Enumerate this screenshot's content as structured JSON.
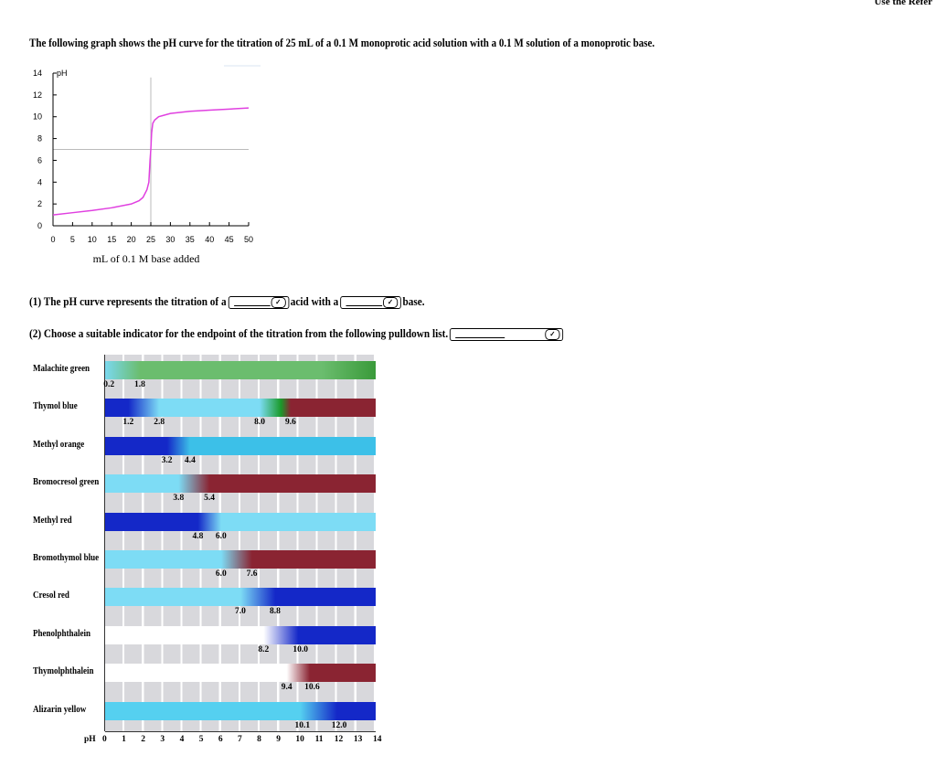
{
  "header": {
    "corner_text": "Use the Refer",
    "intro": "The following graph shows the pH curve for the titration of 25 mL of a 0.1 M monoprotic acid solution with a 0.1 M solution of a monoprotic base."
  },
  "chart_data": {
    "type": "line",
    "ylabel": "pH",
    "xlabel": "mL of 0.1 M base added",
    "xlim": [
      0,
      50
    ],
    "ylim": [
      0,
      14
    ],
    "xticks": [
      "0",
      "5",
      "10",
      "15",
      "20",
      "25",
      "30",
      "35",
      "40",
      "45",
      "50"
    ],
    "yticks": [
      "0",
      "2",
      "4",
      "6",
      "8",
      "10",
      "12",
      "14"
    ],
    "reference_lines": {
      "x": 25,
      "y": 7
    },
    "color": "#e040e0",
    "x": [
      0,
      5,
      10,
      15,
      20,
      22,
      23,
      24,
      24.5,
      24.8,
      25,
      25.2,
      25.5,
      26,
      27,
      30,
      35,
      40,
      45,
      50
    ],
    "y": [
      1.0,
      1.2,
      1.4,
      1.65,
      2.0,
      2.3,
      2.6,
      3.3,
      4.0,
      6.0,
      7.0,
      8.5,
      9.4,
      9.7,
      10.0,
      10.3,
      10.5,
      10.6,
      10.7,
      10.8
    ]
  },
  "questions": {
    "q1_prefix": "(1) The pH curve represents the titration of a",
    "q1_mid": "acid with a",
    "q1_suffix": "base.",
    "q2": "(2) Choose a suitable indicator for the endpoint of the titration from the following pulldown list."
  },
  "indicator_chart": {
    "axis_label": "pH",
    "ticks": [
      "0",
      "1",
      "2",
      "3",
      "4",
      "5",
      "6",
      "7",
      "8",
      "9",
      "10",
      "11",
      "12",
      "13",
      "14"
    ],
    "indicators": [
      {
        "name": "Malachite green",
        "low": "0.2",
        "high": "1.8",
        "lo": 0.2,
        "hi": 1.8,
        "c1": "#7ad8ee",
        "c2": "#6bbd6e",
        "c3": "#3a9a3a"
      },
      {
        "name": "Thymol blue",
        "low": "1.2",
        "high": "2.8",
        "lo": 1.2,
        "hi": 2.8,
        "c1": "#1428c8",
        "c2": "#7ddcf5",
        "low2": "8.0",
        "high2": "9.6",
        "lo2": 8.0,
        "hi2": 9.6,
        "c3": "#8a2432"
      },
      {
        "name": "Methyl orange",
        "low": "3.2",
        "high": "4.4",
        "lo": 3.2,
        "hi": 4.4,
        "c1": "#1428c8",
        "c2": "#3cc0e8"
      },
      {
        "name": "Bromocresol green",
        "low": "3.8",
        "high": "5.4",
        "lo": 3.8,
        "hi": 5.4,
        "c1": "#7ddcf5",
        "c2": "#8a2432"
      },
      {
        "name": "Methyl red",
        "low": "4.8",
        "high": "6.0",
        "lo": 4.8,
        "hi": 6.0,
        "c1": "#1428c8",
        "c2": "#7ddcf5"
      },
      {
        "name": "Bromothymol blue",
        "low": "6.0",
        "high": "7.6",
        "lo": 6.0,
        "hi": 7.6,
        "c1": "#7ddcf5",
        "c2": "#8a2432"
      },
      {
        "name": "Cresol red",
        "low": "7.0",
        "high": "8.8",
        "lo": 7.0,
        "hi": 8.8,
        "c1": "#7ddcf5",
        "c2": "#1428c8"
      },
      {
        "name": "Phenolphthalein",
        "low": "8.2",
        "high": "10.0",
        "lo": 8.2,
        "hi": 10.0,
        "c1": "#ffffff",
        "c2": "#1428c8"
      },
      {
        "name": "Thymolphthalein",
        "low": "9.4",
        "high": "10.6",
        "lo": 9.4,
        "hi": 10.6,
        "c1": "#ffffff",
        "c2": "#8a2432"
      },
      {
        "name": "Alizarin yellow",
        "low": "10.1",
        "high": "12.0",
        "lo": 10.1,
        "hi": 12.0,
        "c1": "#55d0f0",
        "c2": "#1428c8"
      }
    ]
  }
}
